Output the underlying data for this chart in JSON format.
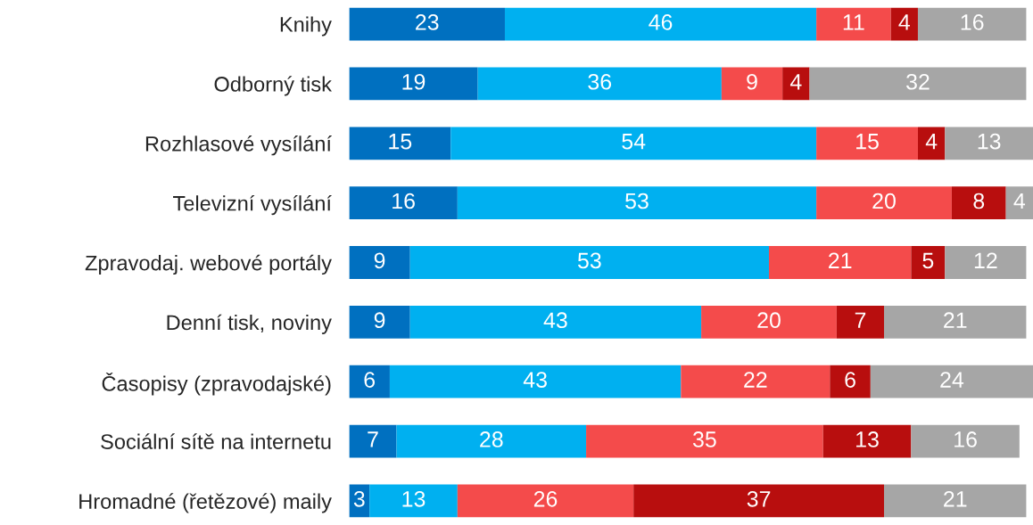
{
  "chart_data": {
    "type": "bar",
    "orientation": "horizontal",
    "stacked": true,
    "data_labels": true,
    "tick_labels": "y",
    "grid": false,
    "legend": false,
    "categories": [
      "Knihy",
      "Odborný tisk",
      "Rozhlasové vysílání",
      "Televizní vysílání",
      "Zpravodaj. webové portály",
      "Denní tisk, noviny",
      "Časopisy (zpravodajské)",
      "Sociální sítě na internetu",
      "Hromadné (řetězové) maily"
    ],
    "series": [
      {
        "color": "#0070c0",
        "values": [
          23,
          19,
          15,
          16,
          9,
          9,
          6,
          7,
          3
        ]
      },
      {
        "color": "#00b0f0",
        "values": [
          46,
          36,
          54,
          53,
          53,
          43,
          43,
          28,
          13
        ]
      },
      {
        "color": "#f44b4b",
        "values": [
          11,
          9,
          15,
          20,
          21,
          20,
          22,
          35,
          26
        ]
      },
      {
        "color": "#b80e0e",
        "values": [
          4,
          4,
          4,
          8,
          5,
          7,
          6,
          13,
          37
        ]
      },
      {
        "color": "#a6a6a6",
        "values": [
          16,
          32,
          13,
          4,
          12,
          21,
          24,
          16,
          21
        ]
      }
    ]
  }
}
